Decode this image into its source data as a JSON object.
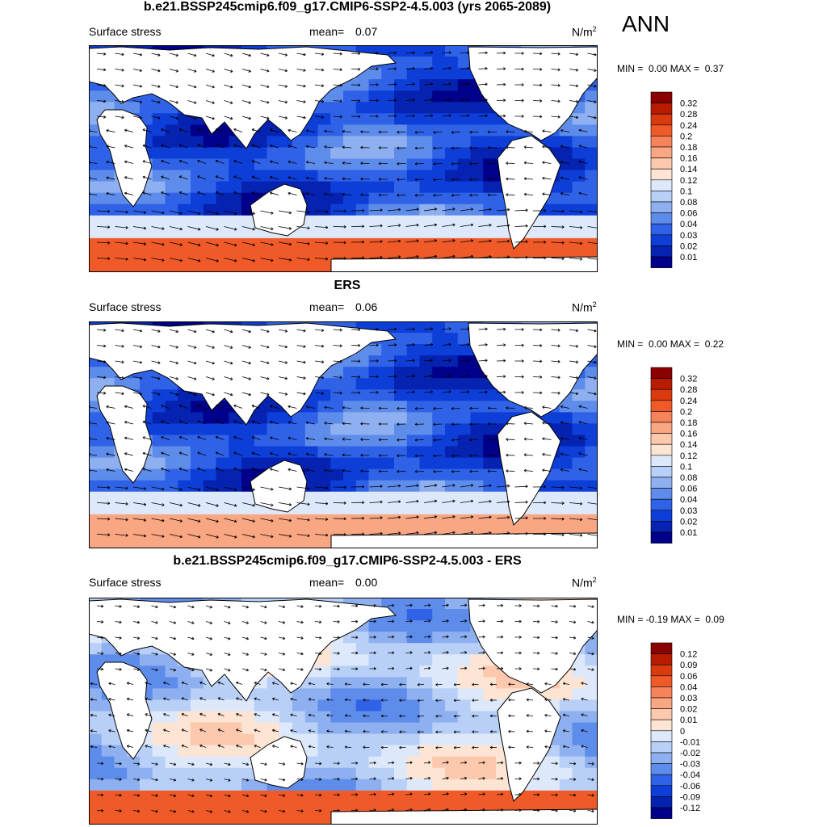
{
  "season": "ANN",
  "panels": [
    {
      "title": "b.e21.BSSP245cmip6.f09_g17.CMIP6-SSP2-4.5.003 (yrs 2065-2089)",
      "left_label": "Surface stress",
      "mean_label": "mean=",
      "mean_value": "0.07",
      "units": "N/m",
      "units_sup": "2",
      "min_label": "MIN =",
      "min_value": "0.00",
      "max_label": "MAX =",
      "max_value": "0.37",
      "colorbar": {
        "labels": [
          "0.32",
          "0.28",
          "0.24",
          "0.2",
          "0.18",
          "0.16",
          "0.14",
          "0.12",
          "0.1",
          "0.08",
          "0.06",
          "0.04",
          "0.03",
          "0.02",
          "0.01"
        ],
        "colors": [
          "#8b0000",
          "#b71c00",
          "#d93a0e",
          "#f05a28",
          "#f7835a",
          "#f9a682",
          "#fcc8ae",
          "#fde4d3",
          "#dde9fb",
          "#b8d0f7",
          "#8eb0f0",
          "#5e8ceb",
          "#2f62e6",
          "#0d3ed8",
          "#0622b0",
          "#00008b"
        ]
      },
      "max_stat": 0.37
    },
    {
      "title": "ERS",
      "left_label": "Surface stress",
      "mean_label": "mean=",
      "mean_value": "0.06",
      "units": "N/m",
      "units_sup": "2",
      "min_label": "MIN =",
      "min_value": "0.00",
      "max_label": "MAX =",
      "max_value": "0.22",
      "colorbar": {
        "labels": [
          "0.32",
          "0.28",
          "0.24",
          "0.2",
          "0.18",
          "0.16",
          "0.14",
          "0.12",
          "0.1",
          "0.08",
          "0.06",
          "0.04",
          "0.03",
          "0.02",
          "0.01"
        ],
        "colors": [
          "#8b0000",
          "#b71c00",
          "#d93a0e",
          "#f05a28",
          "#f7835a",
          "#f9a682",
          "#fcc8ae",
          "#fde4d3",
          "#dde9fb",
          "#b8d0f7",
          "#8eb0f0",
          "#5e8ceb",
          "#2f62e6",
          "#0d3ed8",
          "#0622b0",
          "#00008b"
        ]
      },
      "max_stat": 0.22
    },
    {
      "title": "b.e21.BSSP245cmip6.f09_g17.CMIP6-SSP2-4.5.003 - ERS",
      "left_label": "Surface stress",
      "mean_label": "mean=",
      "mean_value": "0.00",
      "units": "N/m",
      "units_sup": "2",
      "min_label": "MIN =",
      "min_value": "-0.19",
      "max_label": "MAX =",
      "max_value": "0.09",
      "colorbar": {
        "labels": [
          "0.12",
          "0.09",
          "0.06",
          "0.04",
          "0.03",
          "0.02",
          "0.01",
          "0",
          "-0.01",
          "-0.02",
          "-0.03",
          "-0.04",
          "-0.06",
          "-0.09",
          "-0.12"
        ],
        "colors": [
          "#8b0000",
          "#b71c00",
          "#d93a0e",
          "#f05a28",
          "#f7835a",
          "#f9a682",
          "#fcc8ae",
          "#fde4d3",
          "#dde9fb",
          "#b8d0f7",
          "#8eb0f0",
          "#5e8ceb",
          "#2f62e6",
          "#0d3ed8",
          "#0622b0",
          "#00008b"
        ]
      },
      "max_stat": 0.09
    }
  ]
}
